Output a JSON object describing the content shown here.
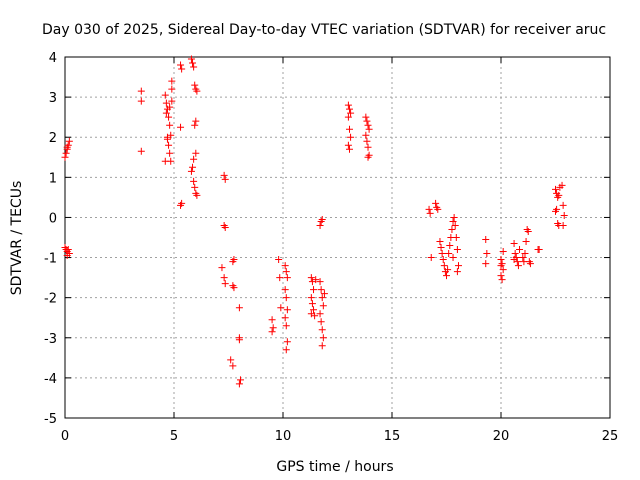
{
  "chart_data": {
    "type": "scatter",
    "title": "Day 030 of 2025, Sidereal Day-to-day VTEC variation (SDTVAR) for receiver aruc",
    "xlabel": "GPS time / hours",
    "ylabel": "SDTVAR / TECUs",
    "xlim": [
      0,
      25
    ],
    "ylim": [
      -5,
      4
    ],
    "xticks": [
      0,
      5,
      10,
      15,
      20,
      25
    ],
    "yticks": [
      -5,
      -4,
      -3,
      -2,
      -1,
      0,
      1,
      2,
      3,
      4
    ],
    "xtick_labels": [
      "0",
      "5",
      "10",
      "15",
      "20",
      "25"
    ],
    "ytick_labels": [
      "-5",
      "-4",
      "-3",
      "-2",
      "-1",
      "0",
      "1",
      "2",
      "3",
      "4"
    ],
    "grid": true,
    "marker": "+",
    "color": "#ff0000",
    "series": [
      {
        "name": "SDTVAR",
        "points": [
          [
            0.0,
            1.5
          ],
          [
            0.05,
            1.6
          ],
          [
            0.1,
            1.7
          ],
          [
            0.15,
            1.8
          ],
          [
            0.2,
            1.9
          ],
          [
            0.1,
            1.75
          ],
          [
            0.0,
            -0.75
          ],
          [
            0.05,
            -0.8
          ],
          [
            0.1,
            -0.85
          ],
          [
            0.15,
            -0.8
          ],
          [
            0.2,
            -0.9
          ],
          [
            0.1,
            -0.95
          ],
          [
            3.5,
            3.15
          ],
          [
            3.5,
            2.9
          ],
          [
            3.5,
            1.65
          ],
          [
            4.6,
            3.05
          ],
          [
            4.65,
            2.85
          ],
          [
            4.7,
            2.7
          ],
          [
            4.75,
            2.5
          ],
          [
            4.8,
            2.3
          ],
          [
            4.85,
            2.05
          ],
          [
            4.7,
            1.95
          ],
          [
            4.75,
            1.8
          ],
          [
            4.8,
            1.6
          ],
          [
            4.85,
            1.4
          ],
          [
            4.6,
            1.4
          ],
          [
            4.9,
            3.2
          ],
          [
            4.9,
            3.4
          ],
          [
            4.65,
            2.6
          ],
          [
            4.8,
            2.75
          ],
          [
            4.9,
            2.9
          ],
          [
            4.7,
            2.0
          ],
          [
            5.3,
            3.8
          ],
          [
            5.35,
            3.7
          ],
          [
            5.3,
            2.25
          ],
          [
            5.35,
            0.35
          ],
          [
            5.3,
            0.3
          ],
          [
            5.8,
            3.95
          ],
          [
            5.85,
            3.85
          ],
          [
            5.9,
            3.75
          ],
          [
            5.95,
            3.3
          ],
          [
            6.0,
            3.2
          ],
          [
            6.05,
            3.15
          ],
          [
            6.0,
            2.4
          ],
          [
            5.95,
            2.3
          ],
          [
            6.0,
            1.6
          ],
          [
            5.9,
            1.45
          ],
          [
            5.85,
            1.25
          ],
          [
            5.8,
            1.15
          ],
          [
            5.9,
            0.9
          ],
          [
            5.95,
            0.75
          ],
          [
            6.0,
            0.6
          ],
          [
            6.05,
            0.55
          ],
          [
            7.3,
            1.05
          ],
          [
            7.35,
            0.95
          ],
          [
            7.3,
            -0.2
          ],
          [
            7.35,
            -0.25
          ],
          [
            7.2,
            -1.25
          ],
          [
            7.3,
            -1.5
          ],
          [
            7.35,
            -1.65
          ],
          [
            7.7,
            -1.1
          ],
          [
            7.75,
            -1.05
          ],
          [
            7.7,
            -1.7
          ],
          [
            7.75,
            -1.75
          ],
          [
            7.6,
            -3.55
          ],
          [
            7.7,
            -3.7
          ],
          [
            8.0,
            -2.25
          ],
          [
            8.0,
            -3.0
          ],
          [
            8.0,
            -3.05
          ],
          [
            8.05,
            -4.05
          ],
          [
            8.0,
            -4.15
          ],
          [
            9.5,
            -2.55
          ],
          [
            9.55,
            -2.75
          ],
          [
            9.5,
            -2.85
          ],
          [
            9.8,
            -1.05
          ],
          [
            9.85,
            -1.5
          ],
          [
            9.9,
            -2.25
          ],
          [
            10.1,
            -1.2
          ],
          [
            10.15,
            -1.35
          ],
          [
            10.2,
            -1.5
          ],
          [
            10.1,
            -1.8
          ],
          [
            10.15,
            -2.0
          ],
          [
            10.2,
            -2.3
          ],
          [
            10.1,
            -2.5
          ],
          [
            10.15,
            -2.7
          ],
          [
            10.2,
            -3.1
          ],
          [
            10.15,
            -3.3
          ],
          [
            11.3,
            -1.5
          ],
          [
            11.35,
            -1.6
          ],
          [
            11.4,
            -1.8
          ],
          [
            11.3,
            -2.0
          ],
          [
            11.35,
            -2.15
          ],
          [
            11.4,
            -2.3
          ],
          [
            11.45,
            -2.45
          ],
          [
            11.3,
            -2.4
          ],
          [
            11.5,
            -1.55
          ],
          [
            11.7,
            -1.6
          ],
          [
            11.75,
            -1.8
          ],
          [
            11.8,
            -2.0
          ],
          [
            11.85,
            -2.2
          ],
          [
            11.7,
            -2.4
          ],
          [
            11.75,
            -2.6
          ],
          [
            11.8,
            -2.8
          ],
          [
            11.85,
            -3.0
          ],
          [
            11.8,
            -3.2
          ],
          [
            11.9,
            -1.9
          ],
          [
            11.8,
            -0.05
          ],
          [
            11.75,
            -0.1
          ],
          [
            11.7,
            -0.2
          ],
          [
            13.0,
            2.8
          ],
          [
            13.05,
            2.7
          ],
          [
            13.1,
            2.6
          ],
          [
            13.0,
            2.5
          ],
          [
            13.05,
            2.2
          ],
          [
            13.1,
            2.0
          ],
          [
            13.0,
            1.8
          ],
          [
            13.05,
            1.7
          ],
          [
            13.8,
            2.5
          ],
          [
            13.85,
            2.4
          ],
          [
            13.9,
            2.3
          ],
          [
            13.95,
            2.2
          ],
          [
            13.8,
            2.05
          ],
          [
            13.85,
            1.9
          ],
          [
            13.9,
            1.75
          ],
          [
            13.95,
            1.55
          ],
          [
            13.9,
            1.5
          ],
          [
            16.7,
            0.2
          ],
          [
            16.75,
            0.1
          ],
          [
            16.8,
            -1.0
          ],
          [
            17.0,
            0.35
          ],
          [
            17.05,
            0.25
          ],
          [
            17.1,
            0.2
          ],
          [
            17.2,
            -0.6
          ],
          [
            17.25,
            -0.75
          ],
          [
            17.3,
            -0.9
          ],
          [
            17.35,
            -1.05
          ],
          [
            17.4,
            -1.2
          ],
          [
            17.45,
            -1.35
          ],
          [
            17.5,
            -1.45
          ],
          [
            17.55,
            -1.3
          ],
          [
            17.6,
            -0.9
          ],
          [
            17.65,
            -0.7
          ],
          [
            17.7,
            -0.5
          ],
          [
            17.75,
            -0.3
          ],
          [
            17.8,
            -0.1
          ],
          [
            17.85,
            0.0
          ],
          [
            17.9,
            -0.2
          ],
          [
            17.95,
            -0.5
          ],
          [
            18.0,
            -0.8
          ],
          [
            18.05,
            -1.2
          ],
          [
            18.0,
            -1.35
          ],
          [
            17.8,
            -1.0
          ],
          [
            19.3,
            -0.55
          ],
          [
            19.35,
            -0.9
          ],
          [
            19.3,
            -1.15
          ],
          [
            20.0,
            -1.05
          ],
          [
            20.05,
            -1.15
          ],
          [
            20.1,
            -1.3
          ],
          [
            20.0,
            -1.45
          ],
          [
            20.05,
            -1.55
          ],
          [
            20.1,
            -0.85
          ],
          [
            20.0,
            -1.2
          ],
          [
            20.6,
            -0.65
          ],
          [
            20.65,
            -0.9
          ],
          [
            20.7,
            -1.0
          ],
          [
            20.75,
            -1.1
          ],
          [
            20.8,
            -1.2
          ],
          [
            20.85,
            -0.8
          ],
          [
            20.6,
            -1.05
          ],
          [
            21.0,
            -1.0
          ],
          [
            21.05,
            -1.1
          ],
          [
            21.1,
            -0.9
          ],
          [
            21.15,
            -0.6
          ],
          [
            21.2,
            -0.3
          ],
          [
            21.25,
            -0.35
          ],
          [
            21.3,
            -1.1
          ],
          [
            21.35,
            -1.15
          ],
          [
            21.7,
            -0.8
          ],
          [
            21.75,
            -0.8
          ],
          [
            22.5,
            0.7
          ],
          [
            22.55,
            0.6
          ],
          [
            22.6,
            0.5
          ],
          [
            22.65,
            0.55
          ],
          [
            22.5,
            0.15
          ],
          [
            22.55,
            0.2
          ],
          [
            22.6,
            -0.15
          ],
          [
            22.65,
            -0.2
          ],
          [
            22.7,
            0.75
          ],
          [
            22.8,
            0.8
          ],
          [
            22.85,
            0.3
          ],
          [
            22.85,
            -0.2
          ],
          [
            22.9,
            0.05
          ]
        ]
      }
    ]
  }
}
